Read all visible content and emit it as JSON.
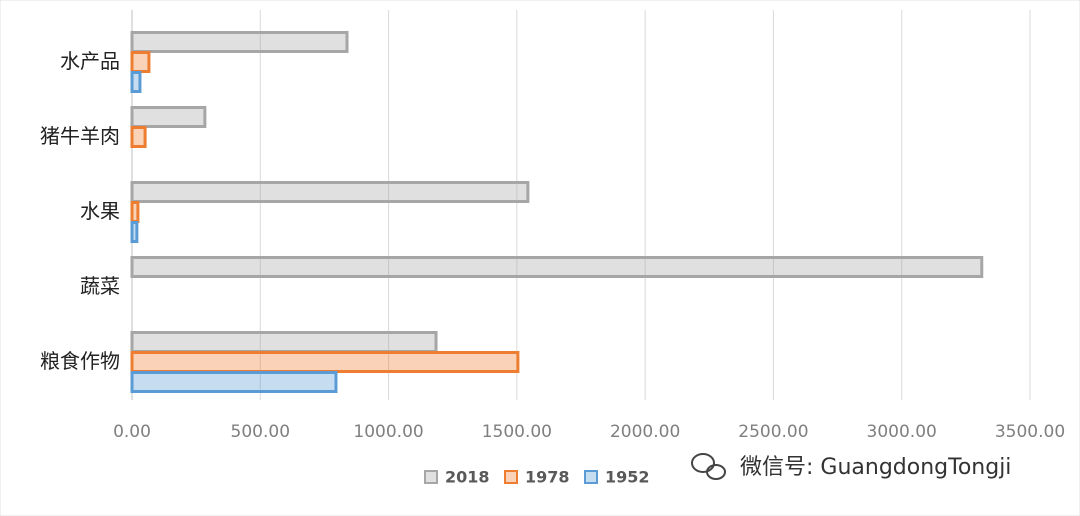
{
  "chart_data": {
    "type": "hbar",
    "categories": [
      "水产品",
      "猪牛羊肉",
      "水果",
      "蔬菜",
      "粮食作物"
    ],
    "series": [
      {
        "name": "2018",
        "color": "#a6a6a6",
        "values": [
          838,
          284,
          1543,
          3312,
          1185
        ]
      },
      {
        "name": "1978",
        "color": "#ed7d31",
        "values": [
          66,
          51,
          23,
          null,
          1504
        ]
      },
      {
        "name": "1952",
        "color": "#5b9bd5",
        "values": [
          31,
          null,
          19,
          null,
          795
        ]
      }
    ],
    "xlim": [
      0,
      3500
    ],
    "xticks": [
      {
        "value": 0,
        "label": "0.00"
      },
      {
        "value": 500,
        "label": "500.00"
      },
      {
        "value": 1000,
        "label": "1000.00"
      },
      {
        "value": 1500,
        "label": "1500.00"
      },
      {
        "value": 2000,
        "label": "2000.00"
      },
      {
        "value": 2500,
        "label": "2500.00"
      },
      {
        "value": 3000,
        "label": "3000.00"
      },
      {
        "value": 3500,
        "label": "3500.00"
      }
    ],
    "grid": true,
    "legend": "bottom",
    "watermark": "微信号: GuangdongTongji"
  }
}
